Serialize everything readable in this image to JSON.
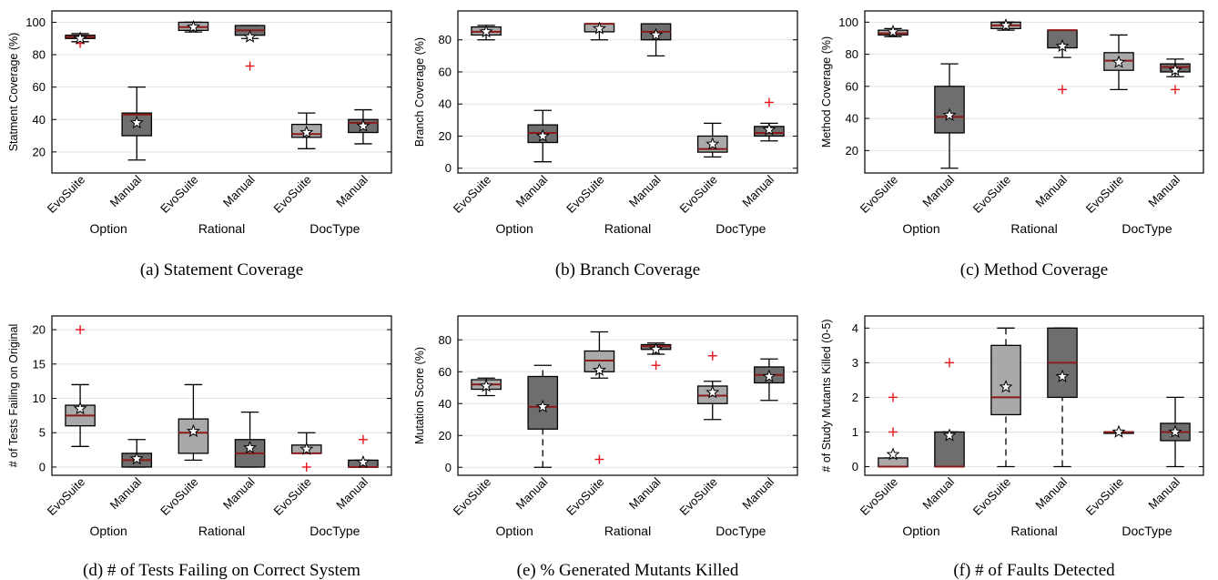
{
  "chart_data": [
    {
      "type": "box",
      "caption": "(a) Statement Coverage",
      "ylabel": "Statment Coverage (%)",
      "ylim": [
        7,
        107
      ],
      "yticks": [
        20,
        40,
        60,
        80,
        100
      ],
      "grid": true,
      "categories": [
        "EvoSuite",
        "Manual",
        "EvoSuite",
        "Manual",
        "EvoSuite",
        "Manual"
      ],
      "groups": [
        "Option",
        "Rational",
        "DocType"
      ],
      "boxes": [
        {
          "category": "EvoSuite",
          "group": "Option",
          "fill": "#a9a9a9",
          "whisker_low": 88,
          "q1": 90,
          "median": 91,
          "q3": 92,
          "whisker_high": 93,
          "mean": 90,
          "outliers": [
            87
          ]
        },
        {
          "category": "Manual",
          "group": "Option",
          "fill": "#6e6e6e",
          "whisker_low": 15,
          "q1": 30,
          "median": 43,
          "q3": 44,
          "whisker_high": 60,
          "mean": 38,
          "outliers": []
        },
        {
          "category": "EvoSuite",
          "group": "Rational",
          "fill": "#a9a9a9",
          "whisker_low": 94,
          "q1": 95,
          "median": 97,
          "q3": 100,
          "whisker_high": 100,
          "mean": 97,
          "outliers": []
        },
        {
          "category": "Manual",
          "group": "Rational",
          "fill": "#6e6e6e",
          "whisker_low": 90,
          "q1": 92,
          "median": 95,
          "q3": 98,
          "whisker_high": 98,
          "mean": 91,
          "outliers": [
            73
          ]
        },
        {
          "category": "EvoSuite",
          "group": "DocType",
          "fill": "#a9a9a9",
          "whisker_low": 22,
          "q1": 29,
          "median": 31,
          "q3": 37,
          "whisker_high": 44,
          "mean": 32,
          "outliers": []
        },
        {
          "category": "Manual",
          "group": "DocType",
          "fill": "#6e6e6e",
          "whisker_low": 25,
          "q1": 32,
          "median": 38,
          "q3": 40,
          "whisker_high": 46,
          "mean": 36,
          "outliers": []
        }
      ]
    },
    {
      "type": "box",
      "caption": "(b) Branch Coverage",
      "ylabel": "Branch Coverage (%)",
      "ylim": [
        -3,
        98
      ],
      "yticks": [
        0,
        20,
        40,
        60,
        80
      ],
      "grid": true,
      "categories": [
        "EvoSuite",
        "Manual",
        "EvoSuite",
        "Manual",
        "EvoSuite",
        "Manual"
      ],
      "groups": [
        "Option",
        "Rational",
        "DocType"
      ],
      "boxes": [
        {
          "category": "EvoSuite",
          "group": "Option",
          "fill": "#a9a9a9",
          "whisker_low": 80,
          "q1": 83,
          "median": 85,
          "q3": 88,
          "whisker_high": 89,
          "mean": 85,
          "outliers": []
        },
        {
          "category": "Manual",
          "group": "Option",
          "fill": "#6e6e6e",
          "whisker_low": 4,
          "q1": 16,
          "median": 22,
          "q3": 27,
          "whisker_high": 36,
          "mean": 20,
          "outliers": []
        },
        {
          "category": "EvoSuite",
          "group": "Rational",
          "fill": "#a9a9a9",
          "whisker_low": 80,
          "q1": 85,
          "median": 90,
          "q3": 90,
          "whisker_high": 90,
          "mean": 87,
          "outliers": []
        },
        {
          "category": "Manual",
          "group": "Rational",
          "fill": "#6e6e6e",
          "whisker_low": 70,
          "q1": 80,
          "median": 85,
          "q3": 90,
          "whisker_high": 90,
          "mean": 83,
          "outliers": []
        },
        {
          "category": "EvoSuite",
          "group": "DocType",
          "fill": "#a9a9a9",
          "whisker_low": 7,
          "q1": 10,
          "median": 12,
          "q3": 20,
          "whisker_high": 28,
          "mean": 15,
          "outliers": []
        },
        {
          "category": "Manual",
          "group": "DocType",
          "fill": "#6e6e6e",
          "whisker_low": 17,
          "q1": 20,
          "median": 22,
          "q3": 26,
          "whisker_high": 28,
          "mean": 24,
          "outliers": [
            41
          ]
        }
      ]
    },
    {
      "type": "box",
      "caption": "(c) Method Coverage",
      "ylabel": "Method Coverage (%)",
      "ylim": [
        6,
        107
      ],
      "yticks": [
        20,
        40,
        60,
        80,
        100
      ],
      "grid": true,
      "categories": [
        "EvoSuite",
        "Manual",
        "EvoSuite",
        "Manual",
        "EvoSuite",
        "Manual"
      ],
      "groups": [
        "Option",
        "Rational",
        "DocType"
      ],
      "boxes": [
        {
          "category": "EvoSuite",
          "group": "Option",
          "fill": "#a9a9a9",
          "whisker_low": 91,
          "q1": 92,
          "median": 93,
          "q3": 95,
          "whisker_high": 96,
          "mean": 94,
          "outliers": []
        },
        {
          "category": "Manual",
          "group": "Option",
          "fill": "#6e6e6e",
          "whisker_low": 9,
          "q1": 31,
          "median": 41,
          "q3": 60,
          "whisker_high": 74,
          "mean": 42,
          "outliers": []
        },
        {
          "category": "EvoSuite",
          "group": "Rational",
          "fill": "#a9a9a9",
          "whisker_low": 95,
          "q1": 96,
          "median": 98,
          "q3": 100,
          "whisker_high": 100,
          "mean": 98,
          "outliers": []
        },
        {
          "category": "Manual",
          "group": "Rational",
          "fill": "#6e6e6e",
          "whisker_low": 78,
          "q1": 84,
          "median": 95,
          "q3": 95,
          "whisker_high": 95,
          "mean": 85,
          "outliers": [
            58
          ]
        },
        {
          "category": "EvoSuite",
          "group": "DocType",
          "fill": "#a9a9a9",
          "whisker_low": 58,
          "q1": 70,
          "median": 76,
          "q3": 81,
          "whisker_high": 92,
          "mean": 75,
          "outliers": []
        },
        {
          "category": "Manual",
          "group": "DocType",
          "fill": "#6e6e6e",
          "whisker_low": 66,
          "q1": 69,
          "median": 72,
          "q3": 74,
          "whisker_high": 77,
          "mean": 70,
          "outliers": [
            58
          ]
        }
      ]
    },
    {
      "type": "box",
      "caption": "(d) # of Tests Failing on Correct System",
      "ylabel": "# of Tests Failing on Original",
      "ylim": [
        -1.2,
        22
      ],
      "yticks": [
        0,
        5,
        10,
        15,
        20
      ],
      "grid": true,
      "categories": [
        "EvoSuite",
        "Manual",
        "EvoSuite",
        "Manual",
        "EvoSuite",
        "Manual"
      ],
      "groups": [
        "Option",
        "Rational",
        "DocType"
      ],
      "boxes": [
        {
          "category": "EvoSuite",
          "group": "Option",
          "fill": "#a9a9a9",
          "whisker_low": 3,
          "q1": 6,
          "median": 7.5,
          "q3": 9,
          "whisker_high": 12,
          "mean": 8.5,
          "outliers": [
            20
          ]
        },
        {
          "category": "Manual",
          "group": "Option",
          "fill": "#6e6e6e",
          "whisker_low": 0,
          "q1": 0,
          "median": 1,
          "q3": 2,
          "whisker_high": 4,
          "mean": 1.2,
          "outliers": []
        },
        {
          "category": "EvoSuite",
          "group": "Rational",
          "fill": "#a9a9a9",
          "whisker_low": 1,
          "q1": 2,
          "median": 5,
          "q3": 7,
          "whisker_high": 12,
          "mean": 5.2,
          "outliers": []
        },
        {
          "category": "Manual",
          "group": "Rational",
          "fill": "#6e6e6e",
          "whisker_low": 0,
          "q1": 0,
          "median": 2,
          "q3": 4,
          "whisker_high": 8,
          "mean": 2.8,
          "outliers": []
        },
        {
          "category": "EvoSuite",
          "group": "DocType",
          "fill": "#a9a9a9",
          "whisker_low": 2,
          "q1": 2,
          "median": 2,
          "q3": 3.2,
          "whisker_high": 5,
          "mean": 2.6,
          "outliers": [
            0
          ]
        },
        {
          "category": "Manual",
          "group": "DocType",
          "fill": "#6e6e6e",
          "whisker_low": 0,
          "q1": 0,
          "median": 0,
          "q3": 1,
          "whisker_high": 1,
          "mean": 0.7,
          "outliers": [
            4
          ]
        }
      ]
    },
    {
      "type": "box",
      "caption": "(e) % Generated Mutants Killed",
      "ylabel": "Mutation Score (%)",
      "ylim": [
        -5,
        95
      ],
      "yticks": [
        0,
        20,
        40,
        60,
        80
      ],
      "grid": true,
      "categories": [
        "EvoSuite",
        "Manual",
        "EvoSuite",
        "Manual",
        "EvoSuite",
        "Manual"
      ],
      "groups": [
        "Option",
        "Rational",
        "DocType"
      ],
      "boxes": [
        {
          "category": "EvoSuite",
          "group": "Option",
          "fill": "#a9a9a9",
          "whisker_low": 45,
          "q1": 49,
          "median": 52,
          "q3": 55,
          "whisker_high": 56,
          "mean": 51,
          "outliers": []
        },
        {
          "category": "Manual",
          "group": "Option",
          "fill": "#6e6e6e",
          "whisker_low": 0,
          "q1": 24,
          "median": 38,
          "q3": 57,
          "whisker_high": 64,
          "mean": 38,
          "outliers": []
        },
        {
          "category": "EvoSuite",
          "group": "Rational",
          "fill": "#a9a9a9",
          "whisker_low": 56,
          "q1": 60,
          "median": 67,
          "q3": 73,
          "whisker_high": 85,
          "mean": 61,
          "outliers": [
            5
          ]
        },
        {
          "category": "Manual",
          "group": "Rational",
          "fill": "#6e6e6e",
          "whisker_low": 71,
          "q1": 74,
          "median": 76,
          "q3": 77,
          "whisker_high": 78,
          "mean": 74,
          "outliers": [
            64
          ]
        },
        {
          "category": "EvoSuite",
          "group": "DocType",
          "fill": "#a9a9a9",
          "whisker_low": 30,
          "q1": 40,
          "median": 45,
          "q3": 51,
          "whisker_high": 54,
          "mean": 47,
          "outliers": [
            70
          ]
        },
        {
          "category": "Manual",
          "group": "DocType",
          "fill": "#6e6e6e",
          "whisker_low": 42,
          "q1": 53,
          "median": 58,
          "q3": 63,
          "whisker_high": 68,
          "mean": 57,
          "outliers": []
        }
      ]
    },
    {
      "type": "box",
      "caption": "(f) # of Faults Detected",
      "ylabel": "# of Study Mutants Killed (0-5)",
      "ylim": [
        -0.25,
        4.35
      ],
      "yticks": [
        0,
        1,
        2,
        3,
        4
      ],
      "grid": true,
      "categories": [
        "EvoSuite",
        "Manual",
        "EvoSuite",
        "Manual",
        "EvoSuite",
        "Manual"
      ],
      "groups": [
        "Option",
        "Rational",
        "DocType"
      ],
      "boxes": [
        {
          "category": "EvoSuite",
          "group": "Option",
          "fill": "#a9a9a9",
          "whisker_low": 0,
          "q1": 0,
          "median": 0,
          "q3": 0.25,
          "whisker_high": 0.25,
          "mean": 0.35,
          "outliers": [
            1,
            2
          ]
        },
        {
          "category": "Manual",
          "group": "Option",
          "fill": "#6e6e6e",
          "whisker_low": 0,
          "q1": 0,
          "median": 0,
          "q3": 1,
          "whisker_high": 1,
          "mean": 0.9,
          "outliers": [
            3
          ]
        },
        {
          "category": "EvoSuite",
          "group": "Rational",
          "fill": "#a9a9a9",
          "whisker_low": 0,
          "q1": 1.5,
          "median": 2,
          "q3": 3.5,
          "whisker_high": 4,
          "mean": 2.3,
          "outliers": []
        },
        {
          "category": "Manual",
          "group": "Rational",
          "fill": "#6e6e6e",
          "whisker_low": 0,
          "q1": 2,
          "median": 3,
          "q3": 4,
          "whisker_high": 4,
          "mean": 2.6,
          "outliers": []
        },
        {
          "category": "EvoSuite",
          "group": "DocType",
          "fill": "#a9a9a9",
          "whisker_low": 1,
          "q1": 1,
          "median": 1,
          "q3": 1,
          "whisker_high": 1,
          "mean": 1,
          "outliers": []
        },
        {
          "category": "Manual",
          "group": "DocType",
          "fill": "#6e6e6e",
          "whisker_low": 0,
          "q1": 0.75,
          "median": 1,
          "q3": 1.25,
          "whisker_high": 2,
          "mean": 1,
          "outliers": []
        }
      ]
    }
  ],
  "style": {
    "median_color": "#8b1a1a",
    "outlier_color": "#e8141c",
    "grid_color": "#e3e3e3",
    "mean_marker": "white-star"
  }
}
